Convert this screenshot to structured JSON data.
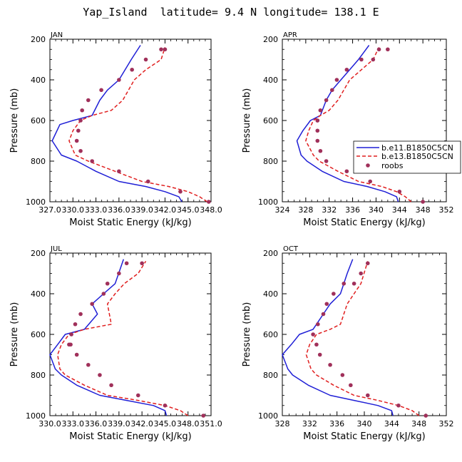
{
  "figure_title": "Yap_Island  latitude= 9.4 N longitude= 138.1 E",
  "colors": {
    "model1": "#1f1fd6",
    "model2": "#e01f1f",
    "obs": "#a0305a",
    "axis": "#000000"
  },
  "legend": {
    "entries": [
      {
        "name": "b.e11.B1850C5CN",
        "style": "solid"
      },
      {
        "name": "b.e13.B1850C5CN",
        "style": "dashed"
      },
      {
        "name": "roobs",
        "style": "dot"
      }
    ]
  },
  "chart_data": [
    {
      "type": "line",
      "panel": "JAN",
      "ylabel": "Pressure (mb)",
      "xlabel": "Moist Static Energy (kJ/kg)",
      "xlim": [
        327.0,
        348.0
      ],
      "ylim": [
        1000,
        200
      ],
      "x_ticks": [
        327.0,
        330.0,
        333.0,
        336.0,
        339.0,
        342.0,
        345.0,
        348.0
      ],
      "x_tick_labels": [
        "327.0",
        "330.0",
        "333.0",
        "336.0",
        "339.0",
        "342.0",
        "345.0",
        "348.0"
      ],
      "y_ticks": [
        200,
        400,
        600,
        800,
        1000
      ],
      "y_tick_labels": [
        "200",
        "400",
        "600",
        "800",
        "1000"
      ],
      "series": [
        {
          "name": "b.e11.B1850C5CN",
          "style": "solid",
          "x": [
            344.2,
            343.8,
            342.0,
            339.5,
            336.0,
            333.0,
            330.5,
            328.5,
            327.3,
            328.3,
            330.0,
            332.5,
            333.5,
            334.5,
            336.0,
            337.6,
            338.8
          ],
          "y": [
            1000,
            975,
            950,
            925,
            900,
            850,
            800,
            770,
            700,
            620,
            600,
            575,
            500,
            450,
            400,
            300,
            230
          ]
        },
        {
          "name": "b.e13.B1850C5CN",
          "style": "dashed",
          "x": [
            347.5,
            346.5,
            345.0,
            342.5,
            339.0,
            335.5,
            332.0,
            330.3,
            329.5,
            330.0,
            331.0,
            332.5,
            335.0,
            336.5,
            338.0,
            339.5,
            341.5,
            342.0
          ],
          "y": [
            1000,
            975,
            950,
            925,
            900,
            850,
            800,
            770,
            700,
            650,
            600,
            575,
            550,
            500,
            400,
            350,
            300,
            240
          ]
        },
        {
          "name": "roobs",
          "style": "dot",
          "x": [
            347.7,
            344.0,
            339.8,
            336.0,
            332.5,
            331.0,
            330.5,
            330.7,
            331.0,
            331.2,
            332.0,
            333.7,
            336.0,
            337.7,
            339.5,
            341.5,
            342.0
          ],
          "y": [
            1000,
            950,
            900,
            850,
            800,
            750,
            700,
            650,
            600,
            550,
            500,
            450,
            400,
            350,
            300,
            250,
            250
          ]
        }
      ]
    },
    {
      "type": "line",
      "panel": "APR",
      "ylabel": "Pressure (mb)",
      "xlabel": "Moist Static Energy (kJ/kg)",
      "xlim": [
        324,
        352
      ],
      "ylim": [
        1000,
        200
      ],
      "x_ticks": [
        324,
        328,
        332,
        336,
        340,
        344,
        348,
        352
      ],
      "x_tick_labels": [
        "324",
        "328",
        "332",
        "336",
        "340",
        "344",
        "348",
        "352"
      ],
      "y_ticks": [
        200,
        400,
        600,
        800,
        1000
      ],
      "y_tick_labels": [
        "200",
        "400",
        "600",
        "800",
        "1000"
      ],
      "series": [
        {
          "name": "b.e11.B1850C5CN",
          "style": "solid",
          "x": [
            343.8,
            343.5,
            341.5,
            338.5,
            334.5,
            330.8,
            328.2,
            327.2,
            326.5,
            327.5,
            328.8,
            330.5,
            331.5,
            332.5,
            334.0,
            335.5,
            337.0,
            338.8
          ],
          "y": [
            1000,
            975,
            950,
            925,
            900,
            850,
            800,
            770,
            700,
            650,
            600,
            575,
            500,
            450,
            400,
            350,
            300,
            230
          ]
        },
        {
          "name": "b.e13.B1850C5CN",
          "style": "dashed",
          "x": [
            346.0,
            345.0,
            343.5,
            341.0,
            337.0,
            333.5,
            330.3,
            329.3,
            328.0,
            328.5,
            329.3,
            330.5,
            332.0,
            333.5,
            335.5,
            337.5,
            339.5,
            340.5
          ],
          "y": [
            1000,
            975,
            950,
            925,
            900,
            850,
            800,
            770,
            700,
            650,
            600,
            575,
            550,
            500,
            400,
            350,
            300,
            240
          ]
        },
        {
          "name": "roobs",
          "style": "dot",
          "x": [
            348.0,
            344.0,
            339.0,
            335.0,
            331.5,
            330.5,
            330.0,
            330.0,
            330.0,
            330.0,
            330.5,
            331.5,
            332.5,
            333.3,
            335.0,
            337.5,
            339.5,
            340.5,
            342.0
          ],
          "y": [
            1000,
            950,
            900,
            850,
            800,
            750,
            700,
            650,
            600,
            600,
            550,
            500,
            450,
            400,
            350,
            300,
            300,
            250,
            250
          ]
        }
      ]
    },
    {
      "type": "line",
      "panel": "JUL",
      "ylabel": "Pressure (mb)",
      "xlabel": "Moist Static Energy (kJ/kg)",
      "xlim": [
        330.0,
        351.0
      ],
      "ylim": [
        1000,
        200
      ],
      "x_ticks": [
        330.0,
        333.0,
        336.0,
        339.0,
        342.0,
        345.0,
        348.0,
        351.0
      ],
      "x_tick_labels": [
        "330.0",
        "333.0",
        "336.0",
        "339.0",
        "342.0",
        "345.0",
        "348.0",
        "351.0"
      ],
      "y_ticks": [
        200,
        400,
        600,
        800,
        1000
      ],
      "y_tick_labels": [
        "200",
        "400",
        "600",
        "800",
        "1000"
      ],
      "series": [
        {
          "name": "b.e11.B1850C5CN",
          "style": "solid",
          "x": [
            345.2,
            345.0,
            343.5,
            340.0,
            336.5,
            333.5,
            331.5,
            330.7,
            330.0,
            331.0,
            332.0,
            334.5,
            336.2,
            335.5,
            337.0,
            338.5,
            339.6
          ],
          "y": [
            1000,
            975,
            950,
            925,
            900,
            850,
            800,
            770,
            700,
            650,
            600,
            575,
            500,
            450,
            400,
            350,
            230
          ]
        },
        {
          "name": "b.e13.B1850C5CN",
          "style": "dashed",
          "x": [
            348.0,
            347.0,
            345.0,
            341.5,
            337.5,
            334.5,
            332.0,
            331.3,
            331.0,
            331.5,
            332.5,
            334.5,
            338.0,
            337.5,
            338.5,
            339.7,
            341.5,
            342.5
          ],
          "y": [
            1000,
            975,
            950,
            925,
            900,
            850,
            800,
            770,
            700,
            650,
            600,
            575,
            550,
            450,
            400,
            350,
            300,
            240
          ]
        },
        {
          "name": "roobs",
          "style": "dot",
          "x": [
            350.0,
            345.0,
            341.5,
            338.0,
            336.5,
            335.0,
            333.5,
            332.7,
            332.5,
            332.8,
            333.3,
            334.0,
            335.5,
            337.0,
            337.5,
            339.0,
            340.0,
            342.0
          ],
          "y": [
            1000,
            950,
            900,
            850,
            800,
            750,
            700,
            650,
            650,
            600,
            550,
            500,
            450,
            400,
            350,
            300,
            250,
            250
          ]
        }
      ]
    },
    {
      "type": "line",
      "panel": "OCT",
      "ylabel": "Pressure (mb)",
      "xlabel": "Moist Static Energy (kJ/kg)",
      "xlim": [
        328,
        352
      ],
      "ylim": [
        1000,
        200
      ],
      "x_ticks": [
        328,
        332,
        336,
        340,
        344,
        348,
        352
      ],
      "x_tick_labels": [
        "328",
        "332",
        "336",
        "340",
        "344",
        "348",
        "352"
      ],
      "y_ticks": [
        200,
        400,
        600,
        800,
        1000
      ],
      "y_tick_labels": [
        "200",
        "400",
        "600",
        "800",
        "1000"
      ],
      "series": [
        {
          "name": "b.e11.B1850C5CN",
          "style": "solid",
          "x": [
            344.2,
            344.0,
            342.0,
            338.5,
            335.0,
            331.8,
            329.5,
            328.8,
            328.0,
            329.3,
            330.5,
            332.5,
            334.0,
            335.0,
            336.5,
            337.5,
            338.3
          ],
          "y": [
            1000,
            975,
            950,
            925,
            900,
            850,
            800,
            770,
            700,
            650,
            600,
            575,
            500,
            450,
            400,
            300,
            230
          ]
        },
        {
          "name": "b.e13.B1850C5CN",
          "style": "dashed",
          "x": [
            348.0,
            347.0,
            345.0,
            342.0,
            338.5,
            335.5,
            333.0,
            332.2,
            331.5,
            332.0,
            333.0,
            335.0,
            336.5,
            337.5,
            338.5,
            339.5,
            340.5
          ],
          "y": [
            1000,
            975,
            950,
            925,
            900,
            850,
            800,
            770,
            700,
            650,
            600,
            575,
            550,
            450,
            400,
            350,
            240
          ]
        },
        {
          "name": "roobs",
          "style": "dot",
          "x": [
            349.0,
            345.0,
            340.5,
            338.0,
            336.8,
            335.0,
            333.5,
            333.0,
            332.5,
            333.2,
            334.0,
            334.5,
            335.5,
            337.0,
            338.5,
            339.5,
            340.5
          ],
          "y": [
            1000,
            950,
            900,
            850,
            800,
            750,
            700,
            650,
            600,
            550,
            500,
            450,
            400,
            350,
            350,
            300,
            250
          ]
        }
      ]
    }
  ]
}
